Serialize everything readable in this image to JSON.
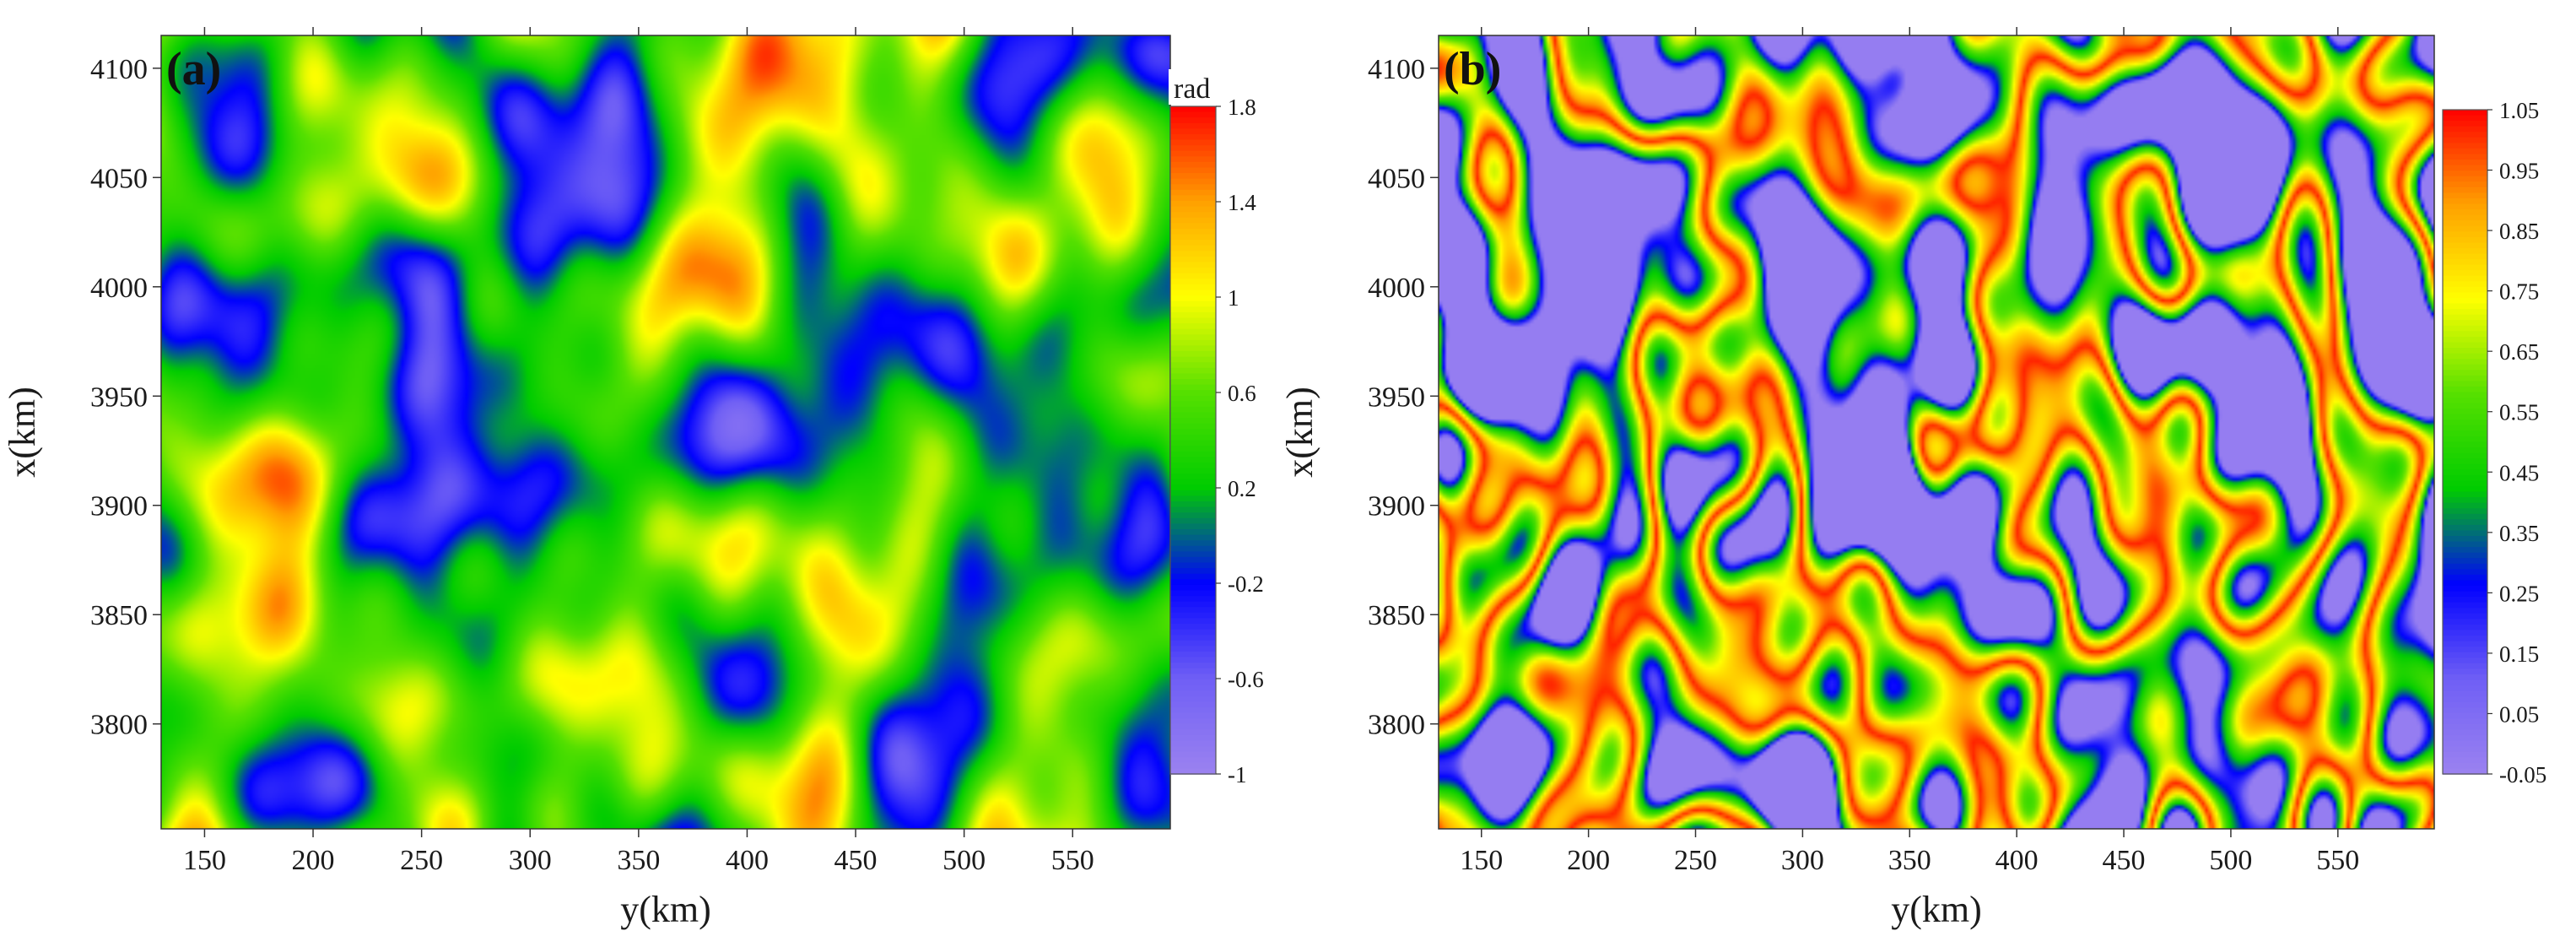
{
  "chart_data": [
    {
      "type": "heatmap",
      "panel_label": "(a)",
      "xlabel": "y(km)",
      "ylabel": "x(km)",
      "xlim": [
        130,
        595
      ],
      "ylim": [
        3752,
        4115
      ],
      "xticks": [
        150,
        200,
        250,
        300,
        350,
        400,
        450,
        500,
        550
      ],
      "yticks": [
        3800,
        3850,
        3900,
        3950,
        4000,
        4050,
        4100
      ],
      "colorbar": {
        "unit": "rad",
        "range": [
          -1,
          1.8
        ],
        "ticks": [
          -1,
          -0.6,
          -0.2,
          0.2,
          0.6,
          1,
          1.4,
          1.8
        ],
        "tick_labels": [
          "-1",
          "-0.6",
          "-0.2",
          "0.2",
          "0.6",
          "1",
          "1.4",
          "1.8"
        ],
        "colors": [
          "#9b82f0",
          "#6f5ff5",
          "#0000ff",
          "#00cc00",
          "#55e000",
          "#ffff00",
          "#ffa000",
          "#ff0000"
        ]
      }
    },
    {
      "type": "heatmap",
      "panel_label": "(b)",
      "xlabel": "y(km)",
      "ylabel": "x(km)",
      "xlim": [
        130,
        595
      ],
      "ylim": [
        3752,
        4115
      ],
      "xticks": [
        150,
        200,
        250,
        300,
        350,
        400,
        450,
        500,
        550
      ],
      "yticks": [
        3800,
        3850,
        3900,
        3950,
        4000,
        4050,
        4100
      ],
      "colorbar": {
        "unit": "",
        "range": [
          -0.05,
          1.05
        ],
        "ticks": [
          -0.05,
          0.05,
          0.15,
          0.25,
          0.35,
          0.45,
          0.55,
          0.65,
          0.75,
          0.85,
          0.95,
          1.05
        ],
        "tick_labels": [
          "-0.05",
          "0.05",
          "0.15",
          "0.25",
          "0.35",
          "0.45",
          "0.55",
          "0.65",
          "0.75",
          "0.85",
          "0.95",
          "1.05"
        ],
        "colors": [
          "#9b82f0",
          "#6f5ff5",
          "#0000ff",
          "#00cc00",
          "#55e000",
          "#ffff00",
          "#ffa000",
          "#ff0000"
        ]
      }
    }
  ]
}
